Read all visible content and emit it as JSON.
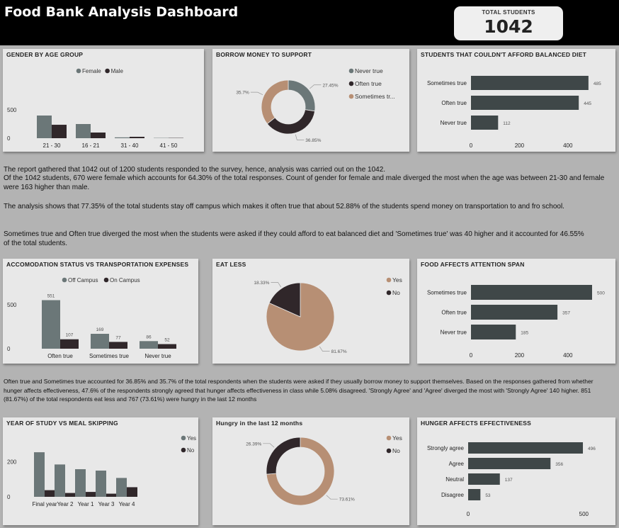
{
  "header": {
    "title": "Food Bank Analysis Dashboard",
    "kpi_label": "TOTAL STUDENTS",
    "kpi_value": "1042"
  },
  "text": {
    "p1": "The report gathered that 1042 out of 1200 students responded to the survey, hence, analysis was carried out on the 1042.",
    "p2": "Of the 1042 students, 670 were female which accounts for 64.30% of the total responses. Count of gender for female and male diverged the most when the age was between 21-30 and female were 163 higher than male.",
    "p3": "The analysis shows that 77.35% of the total students stay off campus which makes it often true that about 52.88% of the students spend money on transportation to and fro school.",
    "p4": "Sometimes true and Often true diverged the most when the students were asked if they could afford to eat balanced diet and 'Sometimes true' was 40 higher and it accounted for 46.55% of the total students.",
    "p5": "Often true and Sometimes true accounted for 36.85% and 35.7% of the total respondents when the students were asked if they usually borrow money to support themselves. Based on the responses gathered from whether hunger affects effectiveness, 47.6% of the respondents strongly agreed that  hunger affects effectiveness in class while 5.08% disagreed. 'Strongly Agree' and 'Agree' diverged the most with 'Strongly Agree'  140 higher. 851 (81.67%) of the total respondents eat less and 767 (73.61%) were hungry in the last 12 months"
  },
  "colors": {
    "gray": "#6b7778",
    "dark": "#30272a",
    "tan": "#b78f74",
    "bar": "#3f4748"
  },
  "chart_data": [
    {
      "id": "gender",
      "type": "bar",
      "title": "GENDER BY AGE GROUP",
      "categories": [
        "21 - 30",
        "16 - 21",
        "31 - 40",
        "41 - 50"
      ],
      "series": [
        {
          "name": "Female",
          "values": [
            400,
            250,
            15,
            5
          ]
        },
        {
          "name": "Male",
          "values": [
            237,
            100,
            25,
            5
          ]
        }
      ],
      "yticks": [
        "500",
        "0"
      ],
      "ylim": [
        0,
        700
      ],
      "legend": "top"
    },
    {
      "id": "borrow",
      "type": "pie",
      "donut": true,
      "title": "BORROW MONEY TO SUPPORT",
      "legend_labels": [
        "Never true",
        "Often true",
        "Sometimes tr..."
      ],
      "slices": [
        {
          "name": "Never true",
          "pct": 27.45,
          "label": "27.45%"
        },
        {
          "name": "Often true",
          "pct": 36.85,
          "label": "36.85%"
        },
        {
          "name": "Sometimes true",
          "pct": 35.7,
          "label": "35.7%"
        }
      ]
    },
    {
      "id": "diet",
      "type": "bar",
      "horizontal": true,
      "title": "STUDENTS THAT COULDN'T AFFORD BALANCED DIET",
      "categories": [
        "Sometimes true",
        "Often true",
        "Never true"
      ],
      "values": [
        485,
        445,
        112
      ],
      "xticks": [
        "0",
        "200",
        "400"
      ],
      "xlim": [
        0,
        500
      ]
    },
    {
      "id": "accom",
      "type": "bar",
      "title": "ACCOMODATION STATUS VS TRANSPORTATION EXPENSES",
      "categories": [
        "Often true",
        "Sometimes true",
        "Never true"
      ],
      "series": [
        {
          "name": "Off Campus",
          "values": [
            551,
            169,
            86
          ]
        },
        {
          "name": "On Campus",
          "values": [
            107,
            77,
            52
          ]
        }
      ],
      "yticks": [
        "500",
        "0"
      ],
      "ylim": [
        0,
        700
      ],
      "legend": "top"
    },
    {
      "id": "eatless",
      "type": "pie",
      "title": "EAT LESS",
      "legend_labels": [
        "Yes",
        "No"
      ],
      "slices": [
        {
          "name": "Yes",
          "pct": 81.67,
          "label": "81.67%"
        },
        {
          "name": "No",
          "pct": 18.33,
          "label": "18.33%"
        }
      ]
    },
    {
      "id": "attention",
      "type": "bar",
      "horizontal": true,
      "title": "FOOD AFFECTS ATTENTION SPAN",
      "categories": [
        "Sometimes true",
        "Often true",
        "Never true"
      ],
      "values": [
        500,
        357,
        185
      ],
      "xticks": [
        "0",
        "200",
        "400"
      ],
      "xlim": [
        0,
        500
      ]
    },
    {
      "id": "year",
      "type": "bar",
      "title": "YEAR OF STUDY VS MEAL SKIPPING",
      "categories": [
        "Final year",
        "Year 2",
        "Year 1",
        "Year 3",
        "Year 4"
      ],
      "series": [
        {
          "name": "Yes",
          "values": [
            255,
            185,
            158,
            150,
            108
          ]
        },
        {
          "name": "No",
          "values": [
            38,
            22,
            28,
            18,
            55
          ]
        }
      ],
      "yticks": [
        "200",
        "0"
      ],
      "ylim": [
        0,
        300
      ],
      "legend": "right"
    },
    {
      "id": "hungry",
      "type": "pie",
      "donut": true,
      "title": "Hungry in the last 12 months",
      "legend_labels": [
        "Yes",
        "No"
      ],
      "slices": [
        {
          "name": "Yes",
          "pct": 73.61,
          "label": "73.61%"
        },
        {
          "name": "No",
          "pct": 26.39,
          "label": "26.39%"
        }
      ]
    },
    {
      "id": "effect",
      "type": "bar",
      "horizontal": true,
      "title": "HUNGER AFFECTS EFFECTIVENESS",
      "categories": [
        "Strongly agree",
        "Agree",
        "Neutral",
        "Disagree"
      ],
      "values": [
        496,
        356,
        137,
        53
      ],
      "xticks": [
        "0",
        "500"
      ],
      "xlim": [
        0,
        600
      ]
    }
  ]
}
